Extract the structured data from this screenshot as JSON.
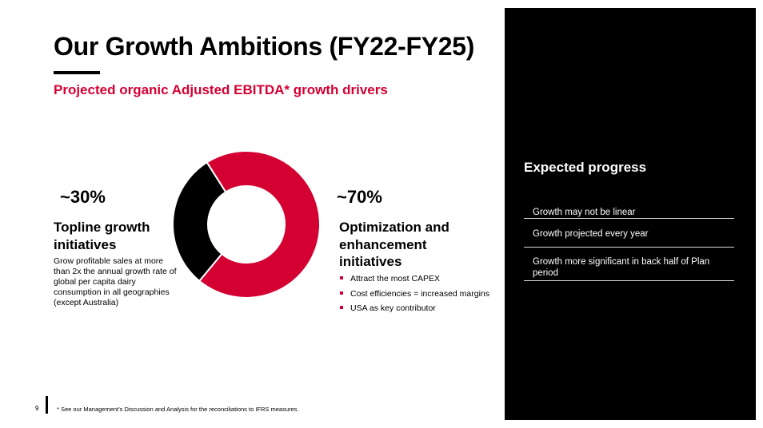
{
  "header": {
    "title": "Our Growth Ambitions (FY22-FY25)",
    "subtitle": "Projected organic Adjusted EBITDA* growth drivers"
  },
  "colors": {
    "accent": "#d50032",
    "panel": "#000000",
    "text": "#000000"
  },
  "left_block": {
    "percent": "~30%",
    "heading_line1": "Topline growth",
    "heading_line2": "initiatives",
    "description": "Grow profitable sales at more than 2x the annual growth rate of global per capita dairy consumption in all geographies (except Australia)"
  },
  "right_block": {
    "percent": "~70%",
    "heading_line1": "Optimization and",
    "heading_line2": "enhancement",
    "heading_line3": "initiatives",
    "bullets": [
      "Attract the most CAPEX",
      "Cost efficiencies = increased margins",
      "USA as key contributor"
    ]
  },
  "chart_data": {
    "type": "pie",
    "categories": [
      "Topline growth initiatives",
      "Optimization and enhancement initiatives"
    ],
    "values": [
      30,
      70
    ],
    "colors": [
      "#000000",
      "#d50032"
    ],
    "donut": true
  },
  "panel": {
    "heading": "Expected progress",
    "items": [
      "Growth may not be linear",
      "Growth projected every year",
      "Growth more significant in back half of Plan period"
    ]
  },
  "footer": {
    "page_number": "9",
    "footnote": "* See our Management’s Discussion and Analysis for the reconciliations to IFRS measures."
  }
}
